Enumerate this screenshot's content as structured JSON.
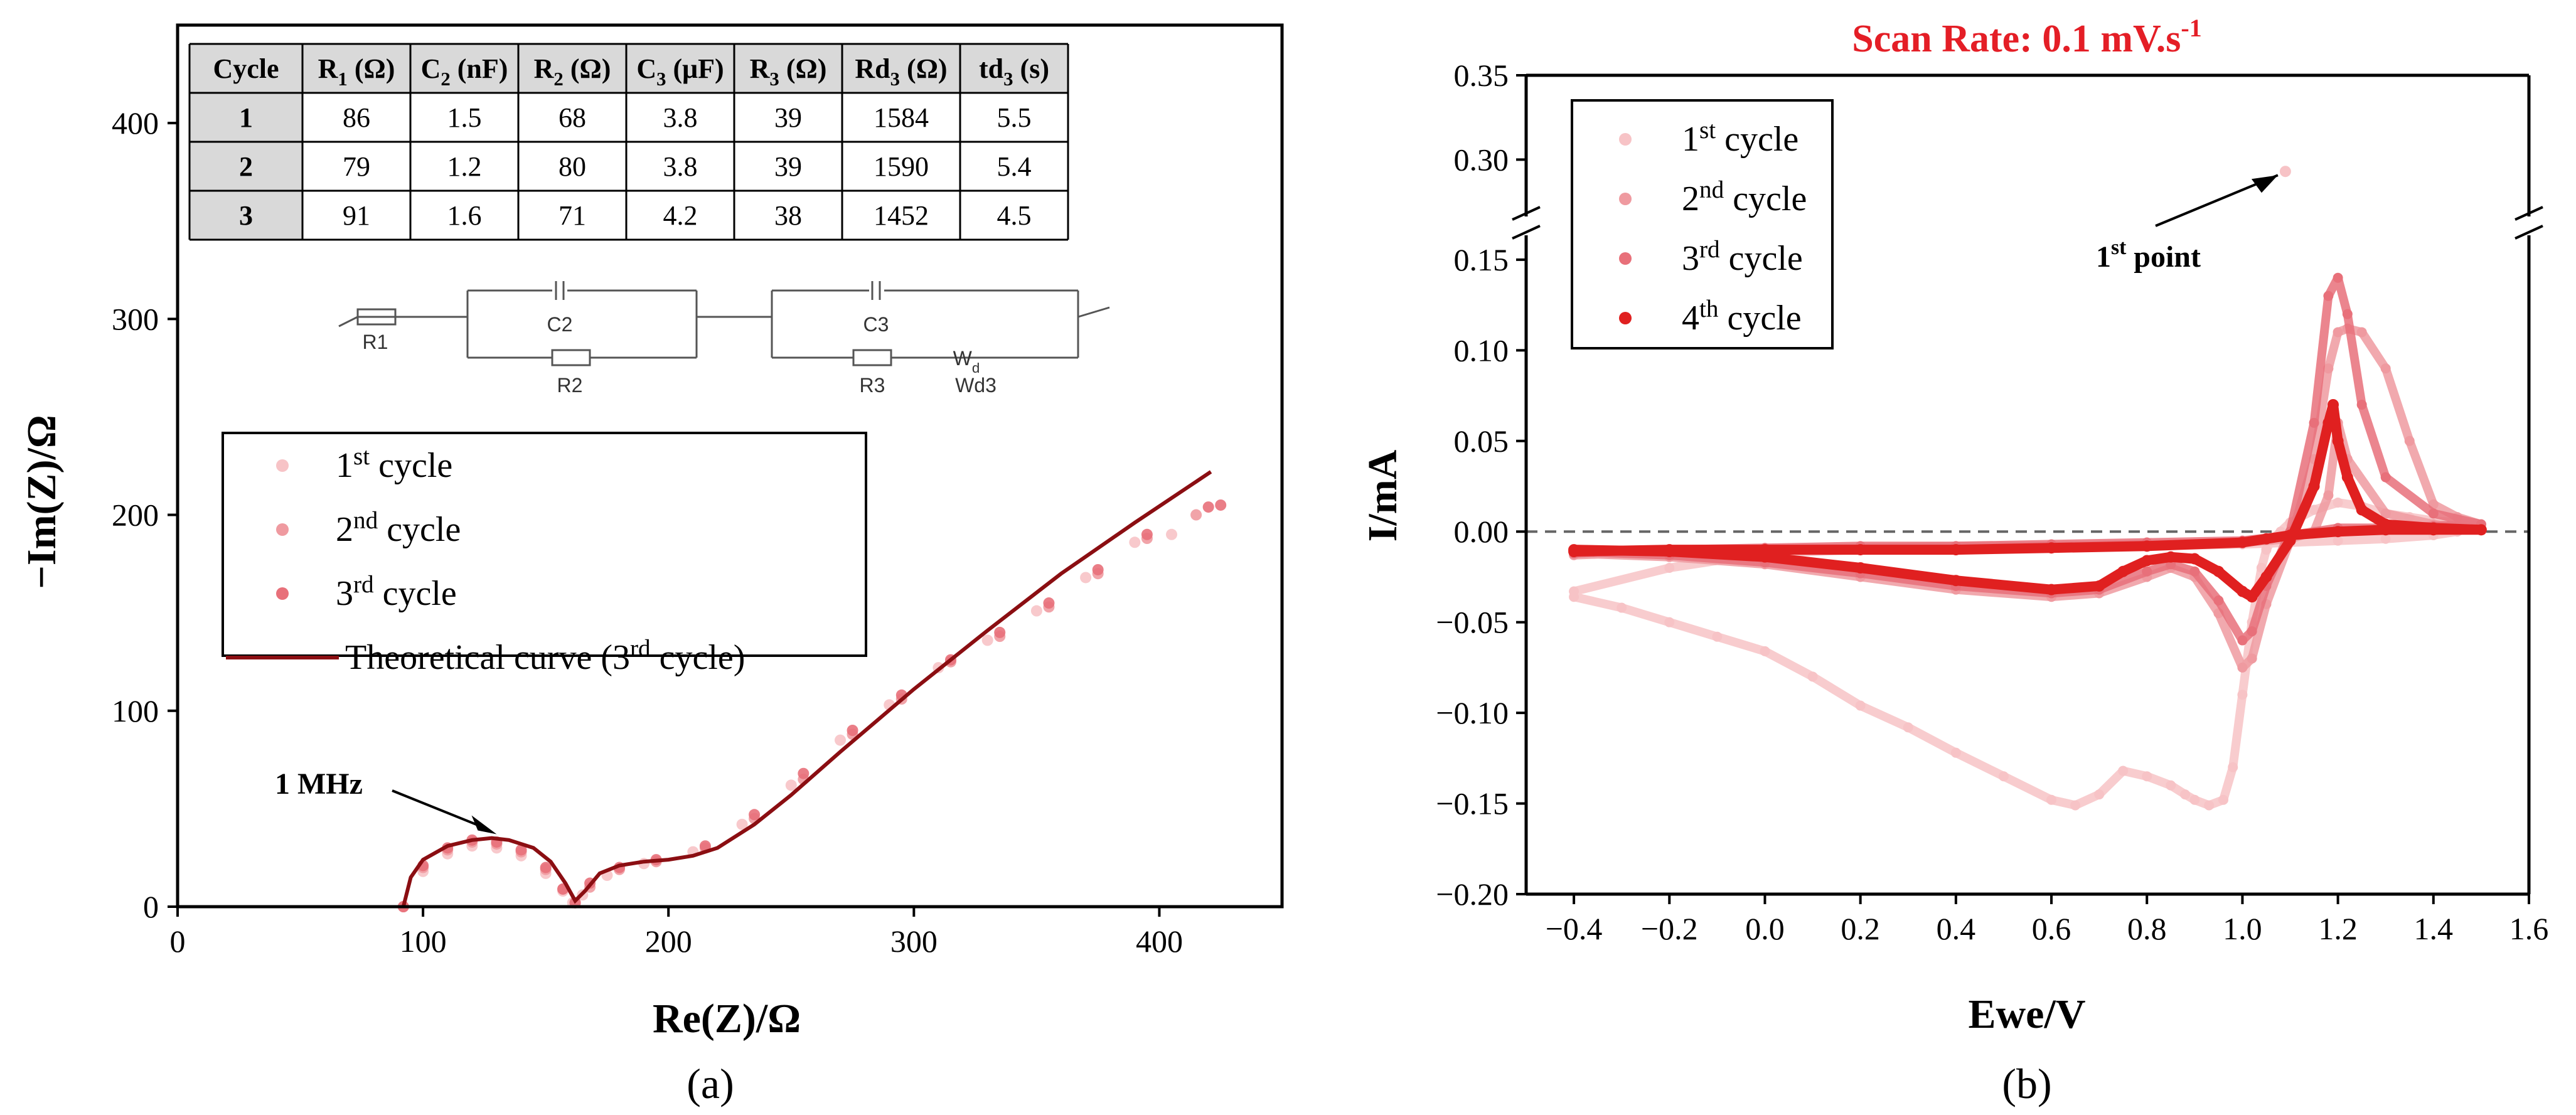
{
  "colors": {
    "c1": "#f7c3c6",
    "c2": "#ef9aa0",
    "c3": "#e8707a",
    "c4": "#e02020",
    "theory": "#8b0e12",
    "title_red": "#e41e26"
  },
  "chart_data": [
    {
      "id": "a",
      "panel_label": "(a)",
      "type": "scatter",
      "xlabel": "Re(Z)/Ω",
      "ylabel": "−Im(Z)/Ω",
      "xlim": [
        0,
        450
      ],
      "ylim": [
        0,
        450
      ],
      "xticks": [
        0,
        100,
        200,
        300,
        400
      ],
      "yticks": [
        0,
        100,
        200,
        300,
        400
      ],
      "annotation": "1 MHz",
      "annotation_target": [
        130,
        37
      ],
      "legend": [
        {
          "main": "1",
          "sup": "st",
          "rest": " cycle"
        },
        {
          "main": "2",
          "sup": "nd",
          "rest": " cycle"
        },
        {
          "main": "3",
          "sup": "rd",
          "rest": " cycle"
        },
        {
          "main": "Theoretical curve (3",
          "sup": "rd",
          "rest": " cycle)"
        }
      ],
      "series": [
        {
          "name": "1st cycle",
          "x": [
            92,
            100,
            110,
            120,
            130,
            140,
            150,
            157,
            161,
            165,
            175,
            190,
            210,
            230,
            250,
            270,
            290,
            310,
            330,
            350,
            370,
            390,
            405
          ],
          "y": [
            0,
            18,
            27,
            31,
            30,
            26,
            17,
            8,
            2,
            6,
            16,
            22,
            28,
            42,
            62,
            85,
            103,
            122,
            136,
            151,
            168,
            186,
            190
          ]
        },
        {
          "name": "2nd cycle",
          "x": [
            92,
            100,
            110,
            120,
            130,
            140,
            150,
            157,
            162,
            168,
            180,
            195,
            215,
            235,
            255,
            275,
            295,
            315,
            335,
            355,
            375,
            395,
            415
          ],
          "y": [
            0,
            20,
            29,
            33,
            32,
            28,
            19,
            9,
            2,
            10,
            19,
            23,
            30,
            45,
            65,
            88,
            106,
            125,
            138,
            153,
            170,
            188,
            200
          ]
        },
        {
          "name": "3rd cycle",
          "x": [
            92,
            100,
            110,
            120,
            130,
            140,
            150,
            157,
            162,
            168,
            180,
            195,
            215,
            235,
            255,
            275,
            295,
            315,
            335,
            355,
            375,
            395,
            420,
            425
          ],
          "y": [
            0,
            21,
            30,
            34,
            33,
            29,
            20,
            9,
            2,
            12,
            20,
            24,
            31,
            47,
            68,
            90,
            108,
            126,
            140,
            155,
            172,
            190,
            204,
            205
          ]
        },
        {
          "name": "Theoretical curve (3rd cycle)",
          "x": [
            92,
            95,
            100,
            110,
            120,
            128,
            135,
            145,
            152,
            158,
            162,
            166,
            172,
            180,
            190,
            200,
            210,
            220,
            235,
            250,
            270,
            300,
            330,
            360,
            390,
            421
          ],
          "y": [
            0,
            15,
            24,
            31,
            34,
            35,
            34,
            30,
            23,
            12,
            3,
            8,
            17,
            21,
            23,
            24,
            26,
            30,
            42,
            57,
            79,
            111,
            141,
            170,
            196,
            222
          ]
        }
      ],
      "table": {
        "headers": [
          {
            "main": "Cycle",
            "sub": "",
            "unit": ""
          },
          {
            "main": "R",
            "sub": "1",
            "unit": " (Ω)"
          },
          {
            "main": "C",
            "sub": "2",
            "unit": " (nF)"
          },
          {
            "main": "R",
            "sub": "2",
            "unit": " (Ω)"
          },
          {
            "main": "C",
            "sub": "3",
            "unit": " (μF)"
          },
          {
            "main": "R",
            "sub": "3",
            "unit": " (Ω)"
          },
          {
            "main": "Rd",
            "sub": "3",
            "unit": " (Ω)"
          },
          {
            "main": "td",
            "sub": "3",
            "unit": " (s)"
          }
        ],
        "rows": [
          [
            "1",
            "86",
            "1.5",
            "68",
            "3.8",
            "39",
            "1584",
            "5.5"
          ],
          [
            "2",
            "79",
            "1.2",
            "80",
            "3.8",
            "39",
            "1590",
            "5.4"
          ],
          [
            "3",
            "91",
            "1.6",
            "71",
            "4.2",
            "38",
            "1452",
            "4.5"
          ]
        ]
      },
      "circuit": {
        "R1": "R1",
        "C2": "C2",
        "R2": "R2",
        "C3": "C3",
        "R3": "R3",
        "Wd": "W",
        "Wd_sub": "d",
        "Wd3": "Wd3"
      }
    },
    {
      "id": "b",
      "panel_label": "(b)",
      "type": "scatter",
      "title": "Scan Rate: 0.1 mV.s",
      "title_sup": "-1",
      "xlabel": "Ewe/V",
      "ylabel": "I/mA",
      "xlim": [
        -0.5,
        1.6
      ],
      "ylim_lower": [
        -0.2,
        0.16
      ],
      "ylim_upper": [
        0.27,
        0.35
      ],
      "xticks": [
        "-0.4",
        "-0.2",
        "0.0",
        "0.2",
        "0.4",
        "0.6",
        "0.8",
        "1.0",
        "1.2",
        "1.4",
        "1.6"
      ],
      "yticks": [
        "-0.20",
        "-0.15",
        "-0.10",
        "-0.05",
        "0.00",
        "0.05",
        "0.10",
        "0.15",
        "0.30",
        "0.35"
      ],
      "zero_line": 0,
      "annotation": {
        "main": "1",
        "sup": "st",
        "rest": " point"
      },
      "first_point": [
        1.09,
        0.293
      ],
      "legend": [
        {
          "main": "1",
          "sup": "st",
          "rest": " cycle"
        },
        {
          "main": "2",
          "sup": "nd",
          "rest": " cycle"
        },
        {
          "main": "3",
          "sup": "rd",
          "rest": " cycle"
        },
        {
          "main": "4",
          "sup": "th",
          "rest": " cycle"
        }
      ],
      "series": [
        {
          "name": "1st cycle",
          "x": [
            -0.4,
            -0.3,
            -0.2,
            -0.1,
            0.0,
            0.1,
            0.2,
            0.3,
            0.4,
            0.5,
            0.6,
            0.65,
            0.7,
            0.75,
            0.8,
            0.85,
            0.88,
            0.9,
            0.93,
            0.96,
            0.98,
            1.0,
            1.02,
            1.04,
            1.05,
            1.06,
            1.08,
            1.1,
            1.15,
            1.2,
            1.25,
            1.3,
            1.35,
            1.4,
            1.45,
            1.5,
            1.45,
            1.4,
            1.3,
            1.2,
            1.1,
            1.0,
            0.8,
            0.6,
            0.4,
            0.2,
            0.0,
            -0.2,
            -0.4
          ],
          "y": [
            -0.036,
            -0.042,
            -0.05,
            -0.058,
            -0.066,
            -0.08,
            -0.096,
            -0.108,
            -0.122,
            -0.135,
            -0.148,
            -0.151,
            -0.145,
            -0.132,
            -0.135,
            -0.14,
            -0.145,
            -0.148,
            -0.151,
            -0.148,
            -0.13,
            -0.09,
            -0.05,
            -0.02,
            -0.01,
            -0.005,
            0.0,
            0.005,
            0.012,
            0.016,
            0.014,
            0.01,
            0.008,
            0.006,
            0.005,
            0.004,
            0.0,
            -0.002,
            -0.004,
            -0.005,
            -0.006,
            -0.007,
            -0.008,
            -0.008,
            -0.009,
            -0.01,
            -0.012,
            -0.02,
            -0.033
          ]
        },
        {
          "name": "2nd cycle",
          "x": [
            -0.4,
            -0.2,
            0.0,
            0.2,
            0.4,
            0.6,
            0.7,
            0.8,
            0.85,
            0.9,
            0.95,
            1.0,
            1.02,
            1.05,
            1.1,
            1.15,
            1.18,
            1.2,
            1.22,
            1.25,
            1.3,
            1.35,
            1.4,
            1.45,
            1.5,
            1.45,
            1.4,
            1.3,
            1.22,
            1.2,
            1.18,
            1.15,
            1.1,
            1.0,
            0.8,
            0.6,
            0.4,
            0.2,
            0.0,
            -0.2,
            -0.4
          ],
          "y": [
            -0.012,
            -0.014,
            -0.018,
            -0.025,
            -0.032,
            -0.036,
            -0.034,
            -0.025,
            -0.02,
            -0.025,
            -0.045,
            -0.075,
            -0.07,
            -0.04,
            -0.005,
            0.04,
            0.09,
            0.11,
            0.112,
            0.11,
            0.09,
            0.05,
            0.015,
            0.008,
            0.004,
            0.003,
            0.004,
            0.01,
            0.04,
            0.06,
            0.02,
            0.0,
            -0.004,
            -0.006,
            -0.007,
            -0.008,
            -0.008,
            -0.009,
            -0.01,
            -0.011,
            -0.013
          ]
        },
        {
          "name": "3rd cycle",
          "x": [
            -0.4,
            -0.2,
            0.0,
            0.2,
            0.4,
            0.6,
            0.7,
            0.8,
            0.85,
            0.9,
            0.95,
            1.0,
            1.02,
            1.05,
            1.1,
            1.15,
            1.18,
            1.2,
            1.22,
            1.25,
            1.3,
            1.4,
            1.5,
            1.4,
            1.3,
            1.2,
            1.1,
            1.0,
            0.8,
            0.6,
            0.4,
            0.2,
            0.0,
            -0.2,
            -0.4
          ],
          "y": [
            -0.011,
            -0.013,
            -0.017,
            -0.023,
            -0.03,
            -0.034,
            -0.032,
            -0.022,
            -0.018,
            -0.022,
            -0.038,
            -0.06,
            -0.055,
            -0.03,
            0.0,
            0.06,
            0.13,
            0.14,
            0.12,
            0.07,
            0.03,
            0.01,
            0.004,
            0.003,
            0.002,
            0.002,
            -0.002,
            -0.005,
            -0.006,
            -0.007,
            -0.008,
            -0.008,
            -0.009,
            -0.01,
            -0.012
          ]
        },
        {
          "name": "4th cycle",
          "x": [
            -0.4,
            -0.2,
            0.0,
            0.2,
            0.4,
            0.6,
            0.7,
            0.75,
            0.8,
            0.85,
            0.9,
            0.95,
            1.0,
            1.02,
            1.05,
            1.1,
            1.15,
            1.18,
            1.19,
            1.2,
            1.22,
            1.25,
            1.3,
            1.4,
            1.5,
            1.4,
            1.3,
            1.2,
            1.1,
            1.05,
            1.0,
            0.8,
            0.6,
            0.4,
            0.2,
            0.0,
            -0.2,
            -0.4
          ],
          "y": [
            -0.01,
            -0.011,
            -0.014,
            -0.02,
            -0.027,
            -0.032,
            -0.03,
            -0.022,
            -0.016,
            -0.014,
            -0.015,
            -0.022,
            -0.033,
            -0.036,
            -0.025,
            -0.005,
            0.025,
            0.06,
            0.07,
            0.05,
            0.03,
            0.012,
            0.004,
            0.002,
            0.001,
            0.001,
            0.001,
            0.0,
            -0.002,
            -0.004,
            -0.006,
            -0.008,
            -0.009,
            -0.01,
            -0.01,
            -0.01,
            -0.01,
            -0.011
          ]
        }
      ]
    }
  ]
}
